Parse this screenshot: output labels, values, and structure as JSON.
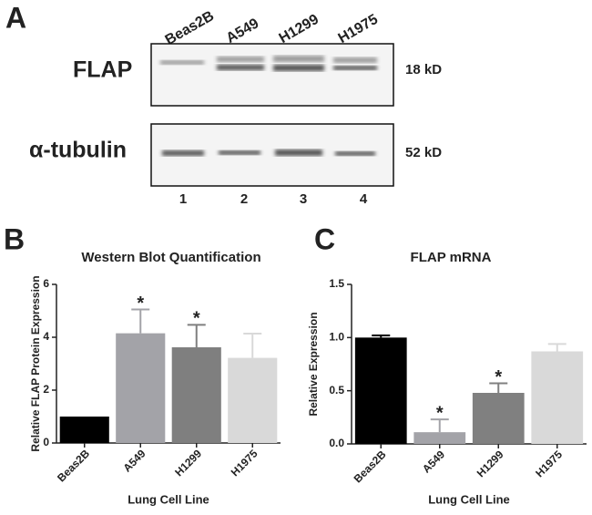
{
  "panel_a": {
    "label": "A",
    "lanes": [
      "Beas2B",
      "A549",
      "H1299",
      "H1975"
    ],
    "lane_numbers": [
      "1",
      "2",
      "3",
      "4"
    ],
    "rows": [
      {
        "protein": "FLAP",
        "size": "18 kD"
      },
      {
        "protein": "α-tubulin",
        "size": "52 kD"
      }
    ]
  },
  "chart_data": [
    {
      "type": "bar",
      "panel_label": "B",
      "title": "Western Blot Quantification",
      "x_label": "Lung Cell Line",
      "y_label": "Relative FLAP Protein Expression",
      "categories": [
        "Beas2B",
        "A549",
        "H1299",
        "H1975"
      ],
      "values": [
        1.0,
        4.15,
        3.62,
        3.22
      ],
      "errors": [
        null,
        0.9,
        0.85,
        0.92
      ],
      "colors": [
        "#000000",
        "#a3a3a8",
        "#7f7f7f",
        "#d9d9d9"
      ],
      "annotations": [
        {
          "category": "A549",
          "text": "*"
        },
        {
          "category": "H1299",
          "text": "*"
        }
      ],
      "ylim": [
        0,
        6
      ],
      "yticks": [
        0,
        2,
        4,
        6
      ]
    },
    {
      "type": "bar",
      "panel_label": "C",
      "title": "FLAP mRNA",
      "x_label": "Lung Cell Line",
      "y_label": "Relative Expression",
      "categories": [
        "Beas2B",
        "A549",
        "H1299",
        "H1975"
      ],
      "values": [
        1.0,
        0.11,
        0.48,
        0.87
      ],
      "errors": [
        0.02,
        0.12,
        0.09,
        0.07
      ],
      "colors": [
        "#000000",
        "#a3a3a8",
        "#808080",
        "#d9d9d9"
      ],
      "annotations": [
        {
          "category": "A549",
          "text": "*"
        },
        {
          "category": "H1299",
          "text": "*"
        }
      ],
      "ylim": [
        0,
        1.5
      ],
      "yticks": [
        {
          "value": 0,
          "label": "0.0"
        },
        0.5,
        {
          "value": 1,
          "label": "1.0"
        },
        1.5
      ]
    }
  ]
}
